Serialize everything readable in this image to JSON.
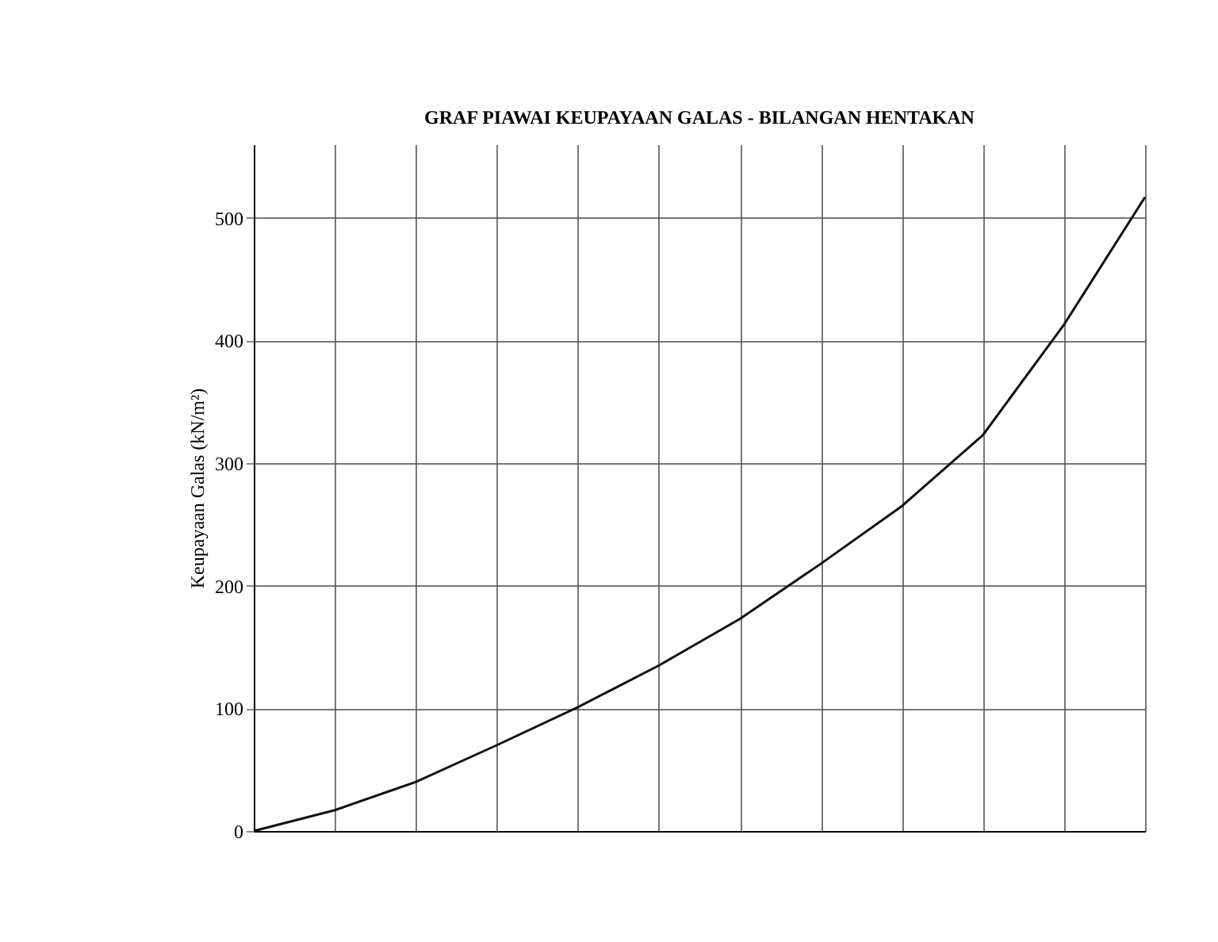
{
  "chart_data": {
    "type": "line",
    "title": "GRAF PIAWAI KEUPAYAAN GALAS - BILANGAN HENTAKAN",
    "ylabel": "Keupayaan Galas (kN/m²)",
    "categories": [
      null,
      null,
      null,
      null,
      null,
      null,
      null,
      null,
      null,
      null,
      null,
      null
    ],
    "series": [
      {
        "color": "#111111",
        "values": [
          0,
          17,
          40,
          70,
          101,
          135,
          173,
          218,
          265,
          323,
          413,
          517
        ]
      }
    ],
    "ylim": [
      0,
      560
    ],
    "yticks": [
      0,
      100,
      200,
      300,
      400,
      500
    ],
    "grid": true,
    "legend": false,
    "marker": "none",
    "line_style": "solid",
    "tick_labels": "y"
  }
}
